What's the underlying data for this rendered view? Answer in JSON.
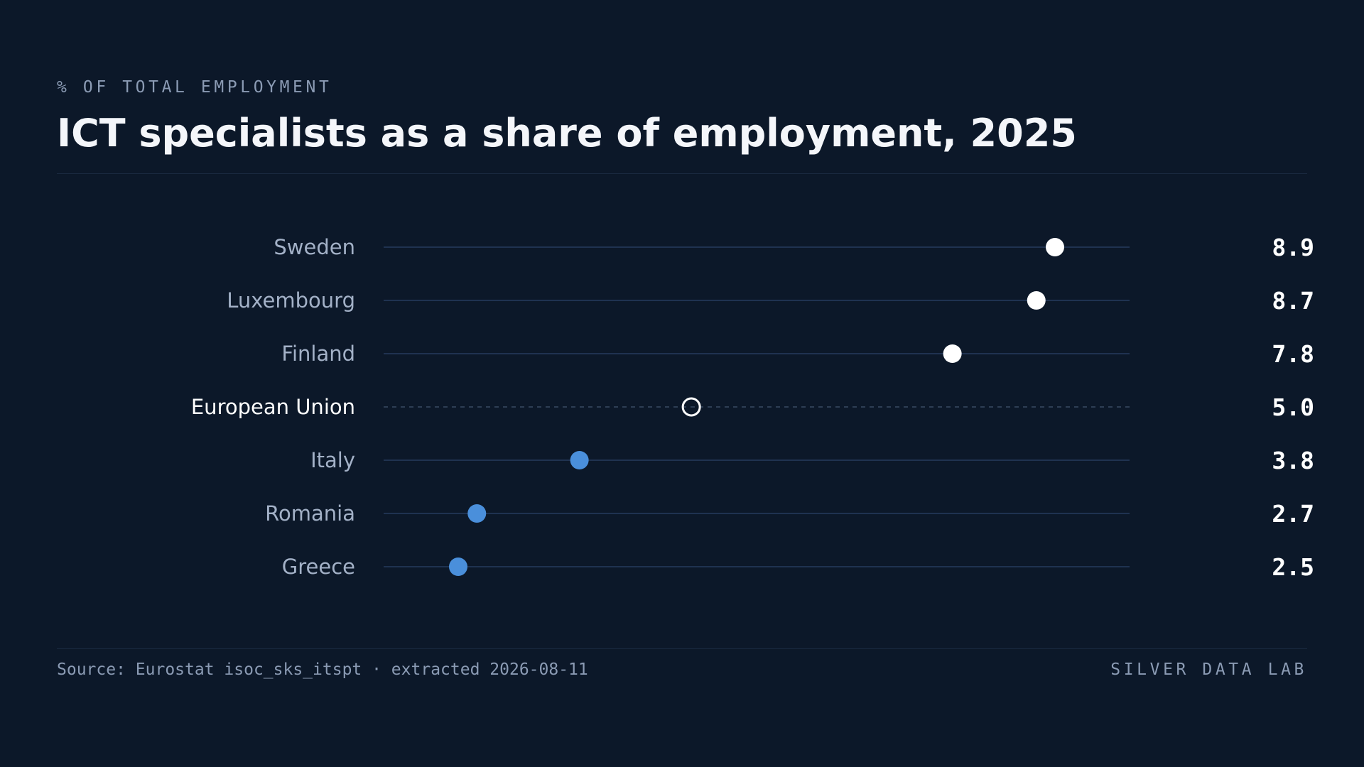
{
  "header": {
    "kicker": "% OF TOTAL EMPLOYMENT",
    "title": "ICT specialists as a share of employment, 2025"
  },
  "footer": {
    "source": "Source: Eurostat isoc_sks_itspt · extracted 2026-08-11",
    "brand": "SILVER DATA LAB"
  },
  "colors": {
    "background": "#0c1829",
    "track": "#1f3250",
    "label": "#a3b1c7",
    "highlight_label": "#ffffff",
    "dot_high": "#ffffff",
    "dot_low": "#4a8fdb",
    "value": "#ffffff"
  },
  "chart_data": {
    "type": "dot",
    "title": "ICT specialists as a share of employment, 2025",
    "unit": "% of total employment",
    "xlim": [
      1.7,
      9.7
    ],
    "grid": false,
    "categories": [
      "Sweden",
      "Luxembourg",
      "Finland",
      "European Union",
      "Italy",
      "Romania",
      "Greece"
    ],
    "values": [
      8.9,
      8.7,
      7.8,
      5.0,
      3.8,
      2.7,
      2.5
    ],
    "value_labels": [
      "8.9",
      "8.7",
      "7.8",
      "5.0",
      "3.8",
      "2.7",
      "2.5"
    ],
    "reference_category": "European Union",
    "reference_style": "hollow-dot-dashed-track"
  }
}
